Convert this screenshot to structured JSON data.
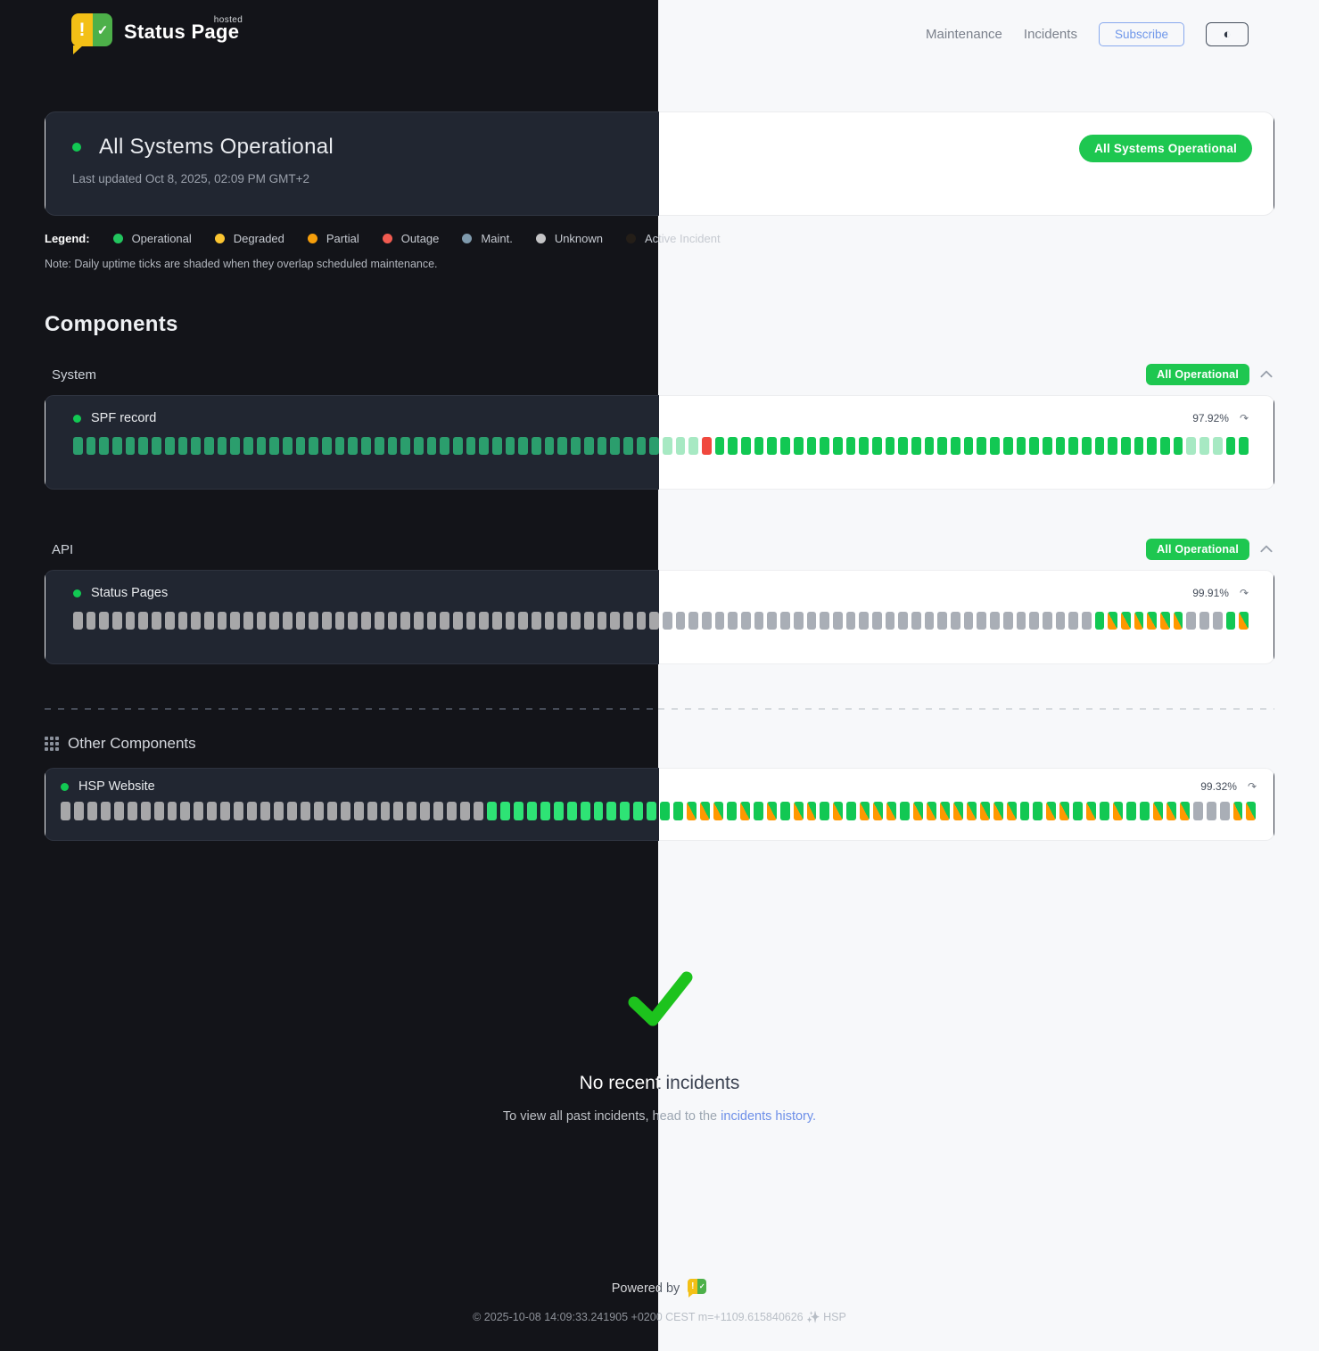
{
  "header": {
    "brand": {
      "name": "Status Page",
      "superscript": "hosted"
    },
    "nav": [
      {
        "label": "Maintenance"
      },
      {
        "label": "Incidents"
      }
    ],
    "subscribe_label": "Subscribe",
    "theme_toggle_icon": "◐"
  },
  "banner": {
    "title": "All Systems Operational",
    "last_updated": "Last updated Oct 8, 2025, 02:09 PM GMT+2",
    "badge": "All Systems Operational"
  },
  "legend": {
    "label": "Legend:",
    "items": [
      {
        "label": "Operational",
        "color": "#22c55e"
      },
      {
        "label": "Degraded",
        "color": "#fbc531"
      },
      {
        "label": "Partial",
        "color": "#f59e0b"
      },
      {
        "label": "Outage",
        "color": "#f15b50"
      },
      {
        "label": "Maint.",
        "color": "#7f9aad"
      },
      {
        "label": "Unknown",
        "color": "#c4c4c6"
      },
      {
        "label": "Active Incident",
        "color": "#241e18"
      }
    ],
    "note": "Note: Daily uptime ticks are shaded when they overlap scheduled maintenance."
  },
  "components": {
    "title": "Components",
    "groups": [
      {
        "name": "System",
        "badge": "All Operational",
        "items": [
          {
            "name": "SPF record",
            "uptime": "97.92%",
            "ticks": [
              [
                "op",
                45
              ],
              [
                "maint",
                3
              ],
              [
                "outage",
                1
              ],
              [
                "op",
                36
              ],
              [
                "maint",
                3
              ],
              [
                "op",
                2
              ]
            ]
          }
        ]
      },
      {
        "name": "API",
        "badge": "All Operational",
        "items": [
          {
            "name": "Status Pages",
            "uptime": "99.91%",
            "ticks": [
              [
                "unknown",
                78
              ],
              [
                "op",
                1
              ],
              [
                "mixed",
                6
              ],
              [
                "unknown",
                3
              ],
              [
                "op",
                1
              ],
              [
                "mixed",
                1
              ]
            ]
          }
        ]
      }
    ],
    "other": {
      "name": "Other Components",
      "items": [
        {
          "name": "HSP Website",
          "uptime": "99.32%",
          "ticks": [
            [
              "unknown",
              32
            ],
            [
              "op",
              15
            ],
            [
              "mixed",
              3
            ],
            [
              "op",
              1
            ],
            [
              "mixed",
              1
            ],
            [
              "op",
              1
            ],
            [
              "mixed",
              1
            ],
            [
              "op",
              1
            ],
            [
              "mixed",
              2
            ],
            [
              "op",
              1
            ],
            [
              "mixed",
              1
            ],
            [
              "op",
              1
            ],
            [
              "mixed",
              3
            ],
            [
              "op",
              1
            ],
            [
              "mixed",
              8
            ],
            [
              "op",
              2
            ],
            [
              "mixed",
              2
            ],
            [
              "op",
              1
            ],
            [
              "mixed",
              1
            ],
            [
              "op",
              1
            ],
            [
              "mixed",
              1
            ],
            [
              "op",
              2
            ],
            [
              "mixed",
              3
            ],
            [
              "unknown",
              3
            ],
            [
              "mixed",
              2
            ]
          ]
        }
      ]
    }
  },
  "incidents": {
    "title": "No recent incidents",
    "subtext_prefix": "To view all past incidents, head to the ",
    "link_text": "incidents history."
  },
  "footer": {
    "powered_by": "Powered by",
    "copyright": "© 2025-10-08 14:09:33.241905 +0200 CEST m=+1109.615840626 ✨ HSP"
  },
  "colors": {
    "bg_dark": "#131419",
    "bg_light": "#f7f8fa",
    "card_dark": "#212631",
    "card_light": "#ffffff",
    "op_light": "#12c853",
    "op_dark": "#2b9e6d",
    "op_dark_bright": "#2ee375",
    "maint_shaded": "#a7e9c3",
    "outage": "#f0483e",
    "unknown_light": "#a9aeb6",
    "unknown_dark": "#a7a7a9",
    "mixed_green": "#12c853",
    "mixed_orange": "#ff9800",
    "badge_green": "#1ec750",
    "link_blue": "#6d8fe8",
    "subscribe_blue": "#6f97ea",
    "check_green": "#1dc31d"
  }
}
